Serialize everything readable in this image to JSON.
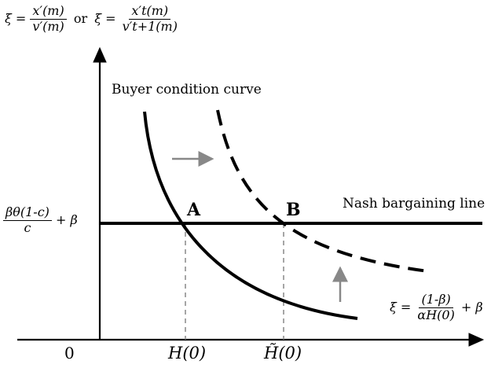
{
  "y_axis_label": {
    "xi1": "ξ =",
    "num1": "x′(m)",
    "den1": "v′(m)",
    "or": "or",
    "xi2": "ξ =",
    "num2": "x′t(m)",
    "den2": "v′t+1(m)"
  },
  "buyer_curve_label": "Buyer condition curve",
  "nash_line_label": "Nash bargaining line",
  "point_a": "A",
  "point_b": "B",
  "nash_level": {
    "num": "βθ(1-c)",
    "den": "c",
    "plus": "+ β"
  },
  "asymptote": {
    "xi": "ξ =",
    "num": "(1-β)",
    "den": "αH(0)",
    "plus": "+ β"
  },
  "origin": "0",
  "x_tick_a": "H(0)",
  "x_tick_b": "H̃(0)",
  "colors": {
    "curve": "#000000",
    "arrow": "#888888",
    "guide": "#888888"
  }
}
